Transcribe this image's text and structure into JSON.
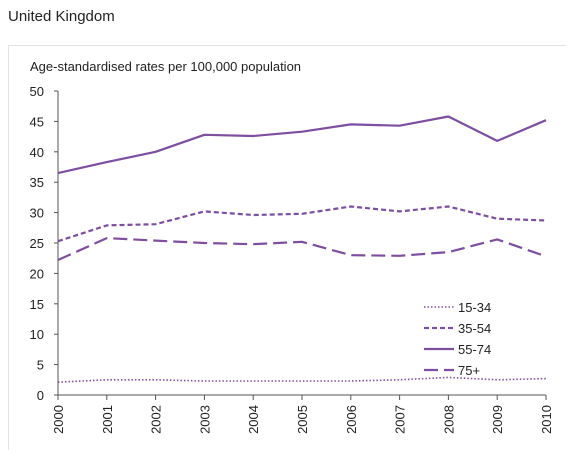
{
  "header": {
    "title": "United Kingdom"
  },
  "chart_data": {
    "type": "line",
    "title": "",
    "ylabel": "Age-standardised rates per 100,000 population",
    "xlabel": "",
    "x": [
      "2000",
      "2001",
      "2002",
      "2003",
      "2004",
      "2005",
      "2006",
      "2007",
      "2008",
      "2009",
      "2010"
    ],
    "ylim": [
      0,
      50
    ],
    "yticks": [
      0,
      5,
      10,
      15,
      20,
      25,
      30,
      35,
      40,
      45,
      50
    ],
    "grid": false,
    "legend_position": "bottom-right",
    "line_color": "#7e4ea0",
    "series": [
      {
        "name": "15-34",
        "dash": "dotted",
        "values": [
          2.1,
          2.5,
          2.5,
          2.3,
          2.3,
          2.3,
          2.3,
          2.5,
          2.9,
          2.5,
          2.7
        ]
      },
      {
        "name": "35-54",
        "dash": "short-dash",
        "values": [
          25.3,
          27.9,
          28.1,
          30.2,
          29.6,
          29.8,
          31.0,
          30.2,
          31.0,
          29.0,
          28.7
        ]
      },
      {
        "name": "55-74",
        "dash": "solid",
        "values": [
          36.5,
          38.3,
          40.0,
          42.8,
          42.6,
          43.3,
          44.5,
          44.3,
          45.8,
          41.8,
          45.2
        ]
      },
      {
        "name": "75+",
        "dash": "long-dash",
        "values": [
          22.2,
          25.8,
          25.4,
          25.0,
          24.8,
          25.2,
          23.0,
          22.9,
          23.5,
          25.6,
          22.8
        ]
      }
    ]
  }
}
